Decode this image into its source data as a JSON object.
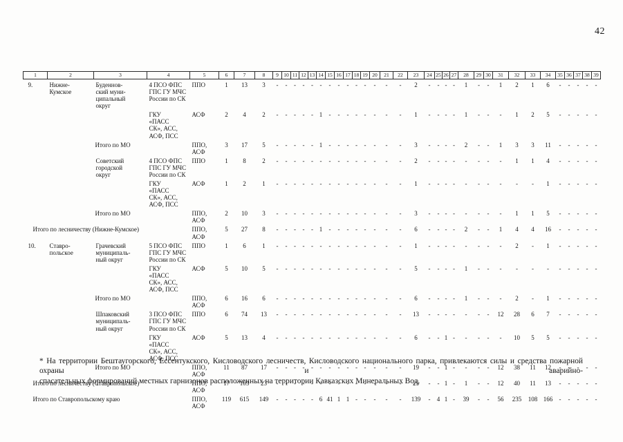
{
  "page_number": "42",
  "table": {
    "columns": [
      "1",
      "2",
      "3",
      "4",
      "5",
      "6",
      "7",
      "8",
      "9",
      "10",
      "11",
      "12",
      "13",
      "14",
      "15",
      "16",
      "17",
      "18",
      "19",
      "20",
      "21",
      "22",
      "23",
      "24",
      "25",
      "26",
      "27",
      "28",
      "29",
      "30",
      "31",
      "32",
      "33",
      "34",
      "35",
      "36",
      "37",
      "38",
      "39"
    ],
    "rows": [
      {
        "kind": "normal",
        "num": "9.",
        "forest": "Нижне-\nКумское",
        "district": "Буденнов-\nский муни-\nципальный\nокруг",
        "unit": "4 ПСО ФПС\nГПС ГУ МЧС\nРоссии по СК",
        "type": "ППО",
        "values": [
          "1",
          "13",
          "3",
          "-",
          "-",
          "-",
          "-",
          "-",
          "-",
          "-",
          "-",
          "-",
          "-",
          "-",
          "-",
          "-",
          "-",
          "2",
          "-",
          "-",
          "-",
          "-",
          "1",
          "-",
          "-",
          "1",
          "2",
          "1",
          "6",
          "-",
          "-",
          "-",
          "-",
          "-"
        ]
      },
      {
        "kind": "normal",
        "num": "",
        "forest": "",
        "district": "",
        "unit": "ГКУ\n«ПАСС\nСК», АСС,\nАСФ, ПСС",
        "type": "АСФ",
        "values": [
          "2",
          "4",
          "2",
          "-",
          "-",
          "-",
          "-",
          "-",
          "1",
          "-",
          "-",
          "-",
          "-",
          "-",
          "-",
          "-",
          "-",
          "1",
          "-",
          "-",
          "-",
          "-",
          "1",
          "-",
          "-",
          "-",
          "1",
          "2",
          "5",
          "-",
          "-",
          "-",
          "-",
          "-"
        ]
      },
      {
        "kind": "itogo_mo",
        "label": "Итого по МО",
        "type": "ППО,\nАСФ",
        "values": [
          "3",
          "17",
          "5",
          "-",
          "-",
          "-",
          "-",
          "-",
          "1",
          "-",
          "-",
          "-",
          "-",
          "-",
          "-",
          "-",
          "-",
          "3",
          "-",
          "-",
          "-",
          "-",
          "2",
          "-",
          "-",
          "1",
          "3",
          "3",
          "11",
          "-",
          "-",
          "-",
          "-",
          "-"
        ]
      },
      {
        "kind": "normal",
        "num": "",
        "forest": "",
        "district": "Советский\nгородской\nокруг",
        "unit": "4 ПСО ФПС\nГПС ГУ МЧС\nРоссии по СК",
        "type": "ППО",
        "values": [
          "1",
          "8",
          "2",
          "-",
          "-",
          "-",
          "-",
          "-",
          "-",
          "-",
          "-",
          "-",
          "-",
          "-",
          "-",
          "-",
          "-",
          "2",
          "-",
          "-",
          "-",
          "-",
          "-",
          "-",
          "-",
          "-",
          "1",
          "1",
          "4",
          "-",
          "-",
          "-",
          "-",
          "-"
        ]
      },
      {
        "kind": "normal",
        "num": "",
        "forest": "",
        "district": "",
        "unit": "ГКУ\n«ПАСС\nСК», АСС,\nАСФ, ПСС",
        "type": "АСФ",
        "values": [
          "1",
          "2",
          "1",
          "-",
          "-",
          "-",
          "-",
          "-",
          "-",
          "-",
          "-",
          "-",
          "-",
          "-",
          "-",
          "-",
          "-",
          "1",
          "-",
          "-",
          "-",
          "-",
          "-",
          "-",
          "-",
          "-",
          "-",
          "-",
          "1",
          "-",
          "-",
          "-",
          "-",
          "-"
        ]
      },
      {
        "kind": "itogo_mo",
        "label": "Итого по МО",
        "type": "ППО,\nАСФ",
        "values": [
          "2",
          "10",
          "3",
          "-",
          "-",
          "-",
          "-",
          "-",
          "-",
          "-",
          "-",
          "-",
          "-",
          "-",
          "-",
          "-",
          "-",
          "3",
          "-",
          "-",
          "-",
          "-",
          "-",
          "-",
          "-",
          "-",
          "1",
          "1",
          "5",
          "-",
          "-",
          "-",
          "-",
          "-"
        ]
      },
      {
        "kind": "itogo_les",
        "label": "Итого по лесничеству (Нижне-Кумское)",
        "type": "ППО,\nАСФ",
        "values": [
          "5",
          "27",
          "8",
          "-",
          "-",
          "-",
          "-",
          "-",
          "1",
          "-",
          "-",
          "-",
          "-",
          "-",
          "-",
          "-",
          "-",
          "6",
          "-",
          "-",
          "-",
          "-",
          "2",
          "-",
          "-",
          "1",
          "4",
          "4",
          "16",
          "-",
          "-",
          "-",
          "-",
          "-"
        ]
      },
      {
        "kind": "normal",
        "num": "10.",
        "forest": "Ставро-\nпольское",
        "district": "Грачевский\nмуниципаль-\nный округ",
        "unit": "5 ПСО ФПС\nГПС ГУ МЧС\nРоссии по СК",
        "type": "ППО",
        "values": [
          "1",
          "6",
          "1",
          "-",
          "-",
          "-",
          "-",
          "-",
          "-",
          "-",
          "-",
          "-",
          "-",
          "-",
          "-",
          "-",
          "-",
          "1",
          "-",
          "-",
          "-",
          "-",
          "-",
          "-",
          "-",
          "-",
          "2",
          "-",
          "1",
          "-",
          "-",
          "-",
          "-",
          "-"
        ]
      },
      {
        "kind": "normal",
        "num": "",
        "forest": "",
        "district": "",
        "unit": "ГКУ\n«ПАСС\nСК», АСС,\nАСФ, ПСС",
        "type": "АСФ",
        "values": [
          "5",
          "10",
          "5",
          "-",
          "-",
          "-",
          "-",
          "-",
          "-",
          "-",
          "-",
          "-",
          "-",
          "-",
          "-",
          "-",
          "-",
          "5",
          "-",
          "-",
          "-",
          "-",
          "1",
          "-",
          "-",
          "-",
          "-",
          "-",
          "-",
          "-",
          "-",
          "-",
          "-",
          "-"
        ]
      },
      {
        "kind": "itogo_mo",
        "label": "Итого по МО",
        "type": "ППО,\nАСФ",
        "values": [
          "6",
          "16",
          "6",
          "-",
          "-",
          "-",
          "-",
          "-",
          "-",
          "-",
          "-",
          "-",
          "-",
          "-",
          "-",
          "-",
          "-",
          "6",
          "-",
          "-",
          "-",
          "-",
          "1",
          "-",
          "-",
          "-",
          "2",
          "-",
          "1",
          "-",
          "-",
          "-",
          "-",
          "-"
        ]
      },
      {
        "kind": "normal",
        "num": "",
        "forest": "",
        "district": "Шпаковский\nмуниципаль-\nный округ",
        "unit": "3 ПСО ФПС\nГПС ГУ МЧС\nРоссии по СК",
        "type": "ППО",
        "values": [
          "6",
          "74",
          "13",
          "-",
          "-",
          "-",
          "-",
          "-",
          "-",
          "-",
          "-",
          "-",
          "-",
          "-",
          "-",
          "-",
          "-",
          "13",
          "-",
          "-",
          "-",
          "-",
          "-",
          "-",
          "-",
          "12",
          "28",
          "6",
          "7",
          "-",
          "-",
          "-",
          "-",
          "-"
        ]
      },
      {
        "kind": "normal",
        "num": "",
        "forest": "",
        "district": "",
        "unit": "ГКУ\n«ПАСС\nСК», АСС,\nАСФ, ПСС",
        "type": "АСФ",
        "values": [
          "5",
          "13",
          "4",
          "-",
          "-",
          "-",
          "-",
          "-",
          "-",
          "-",
          "-",
          "-",
          "-",
          "-",
          "-",
          "-",
          "-",
          "6",
          "-",
          "-",
          "1",
          "-",
          "-",
          "-",
          "-",
          "-",
          "10",
          "5",
          "5",
          "-",
          "-",
          "-",
          "-",
          "-"
        ]
      },
      {
        "kind": "itogo_mo",
        "label": "Итого по МО",
        "type": "ППО,\nАСФ",
        "values": [
          "11",
          "87",
          "17",
          "-",
          "-",
          "-",
          "-",
          "-",
          "-",
          "-",
          "-",
          "-",
          "-",
          "-",
          "-",
          "-",
          "-",
          "19",
          "-",
          "-",
          "1",
          "-",
          "-",
          "-",
          "-",
          "12",
          "38",
          "11",
          "12",
          "-",
          "-",
          "-",
          "-",
          "-"
        ]
      },
      {
        "kind": "itogo_les",
        "label": "Итого по лесничеству (Ставропольское)",
        "type": "ППО,\nАСФ",
        "values": [
          "17",
          "103",
          "23",
          "-",
          "-",
          "-",
          "-",
          "-",
          "-",
          "-",
          "-",
          "-",
          "-",
          "-",
          "-",
          "-",
          "-",
          "25",
          "-",
          "-",
          "1",
          "-",
          "1",
          "-",
          "-",
          "12",
          "40",
          "11",
          "13",
          "-",
          "-",
          "-",
          "-",
          "-"
        ]
      },
      {
        "kind": "itogo_les",
        "label": "Итого по Ставропольскому краю",
        "type": "ППО,\nАСФ",
        "values": [
          "119",
          "615",
          "149",
          "-",
          "-",
          "-",
          "-",
          "-",
          "6",
          "41",
          "1",
          "1",
          "-",
          "-",
          "-",
          "-",
          "-",
          "139",
          "-",
          "4",
          "1",
          "-",
          "39",
          "-",
          "-",
          "56",
          "235",
          "108",
          "166",
          "-",
          "-",
          "-",
          "-",
          "-"
        ]
      }
    ]
  },
  "footnote": {
    "lines": [
      "* На территории Бештаугорского, Ессентукского, Кисловодского лесничеств, Кисловодского национального парка, привлекаются силы и средства пожарной охраны и аварийно-",
      "спасательных формирований местных гарнизонов расположенных на территории Кавказских Минеральных Вод."
    ]
  }
}
